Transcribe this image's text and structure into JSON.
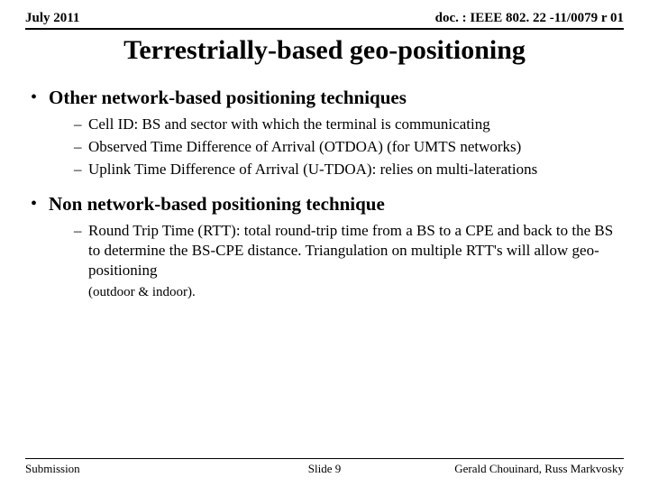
{
  "header": {
    "left": "July 2011",
    "right": "doc. : IEEE 802. 22 -11/0079 r 01"
  },
  "title": "Terrestrially-based geo-positioning",
  "sections": [
    {
      "heading": "Other network-based positioning techniques",
      "items": [
        "Cell ID: BS and sector with which the terminal is communicating",
        "Observed Time Difference of Arrival (OTDOA) (for UMTS networks)",
        "Uplink Time Difference of Arrival (U-TDOA): relies on multi-laterations"
      ]
    },
    {
      "heading": "Non network-based positioning technique",
      "items": [
        "Round Trip Time (RTT): total round-trip time from a BS to a CPE and back to the BS to determine the BS-CPE distance. Triangulation on multiple RTT's will allow geo-positioning"
      ],
      "note": "(outdoor & indoor)."
    }
  ],
  "footer": {
    "left": "Submission",
    "center": "Slide 9",
    "right": "Gerald Chouinard, Russ Markvosky"
  }
}
